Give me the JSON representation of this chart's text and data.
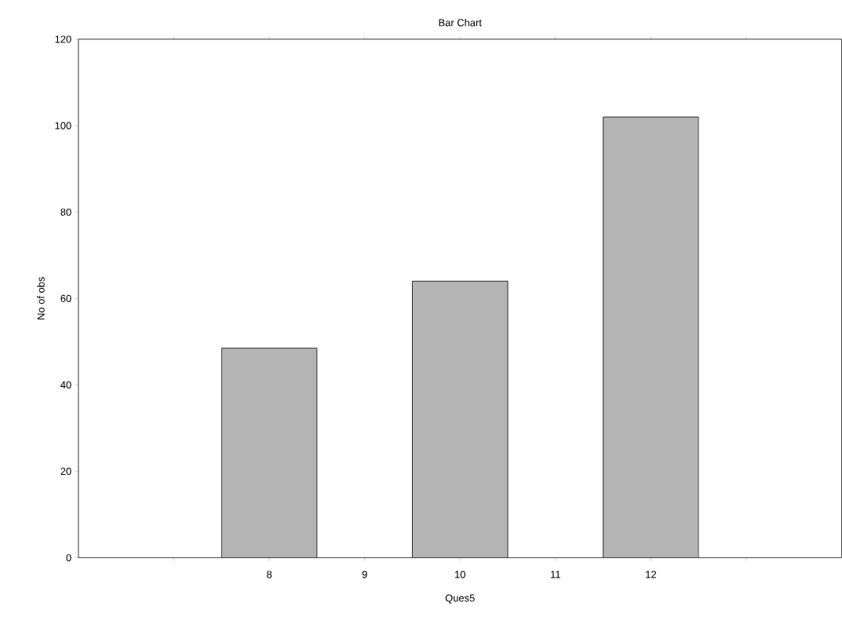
{
  "chart_data": {
    "type": "bar",
    "title": "Bar Chart",
    "xlabel": "Ques5",
    "ylabel": "No of obs",
    "x": [
      8,
      10,
      12
    ],
    "values": [
      48.5,
      64,
      102
    ],
    "color": "#b4b4b4",
    "xlim": [
      6,
      14
    ],
    "xticks": [
      {
        "value": 7,
        "label": null
      },
      8,
      9,
      10,
      11,
      12,
      {
        "value": 13,
        "label": null
      }
    ],
    "ylim": [
      0,
      120
    ],
    "yticks": [
      0,
      20,
      40,
      60,
      80,
      100,
      120
    ]
  }
}
